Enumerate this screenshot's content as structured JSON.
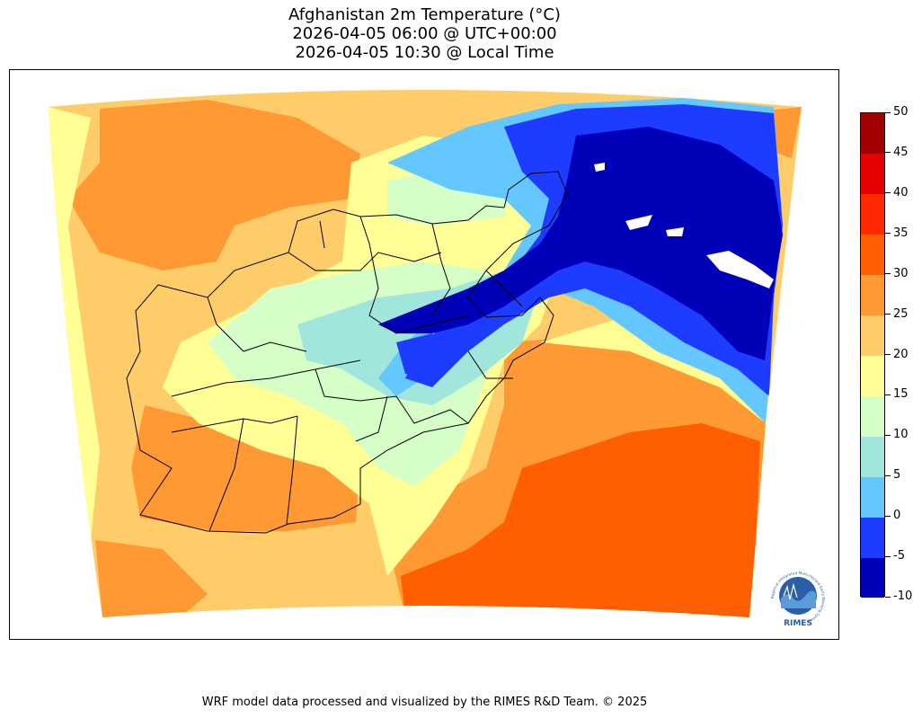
{
  "title": {
    "line1": "Afghanistan 2m Temperature (°C)",
    "line2": "2026-04-05 06:00 @ UTC+00:00",
    "line3": "2026-04-05 10:30 @ Local Time"
  },
  "colorbar": {
    "unit": "°C",
    "ticks": [
      "-10",
      "-5",
      "0",
      "5",
      "10",
      "15",
      "20",
      "25",
      "30",
      "35",
      "40",
      "45",
      "50"
    ],
    "colors": [
      "#0000b8",
      "#1e3cff",
      "#64c8ff",
      "#a0e6dc",
      "#d6ffc8",
      "#ffff96",
      "#ffcc6a",
      "#ff9933",
      "#ff5f00",
      "#ff2a00",
      "#e60000",
      "#a00000"
    ]
  },
  "map": {
    "region": "Afghanistan",
    "colors": {
      "c_m10": "#0000b8",
      "c_m5": "#1e3cff",
      "c_0": "#64c8ff",
      "c_5": "#a0e6dc",
      "c_10": "#d6ffc8",
      "c_15": "#ffff96",
      "c_20": "#ffcc6a",
      "c_25": "#ff9933",
      "c_30": "#ff5f00",
      "below_range": "#ffffff"
    }
  },
  "logo": {
    "text": "RIMES",
    "ring_text": "Regional Integrated Multi-Hazard Early Warning System",
    "brand_color": "#2a5fa8"
  },
  "footer": "WRF model data processed and visualized by the RIMES R&D Team. © 2025"
}
